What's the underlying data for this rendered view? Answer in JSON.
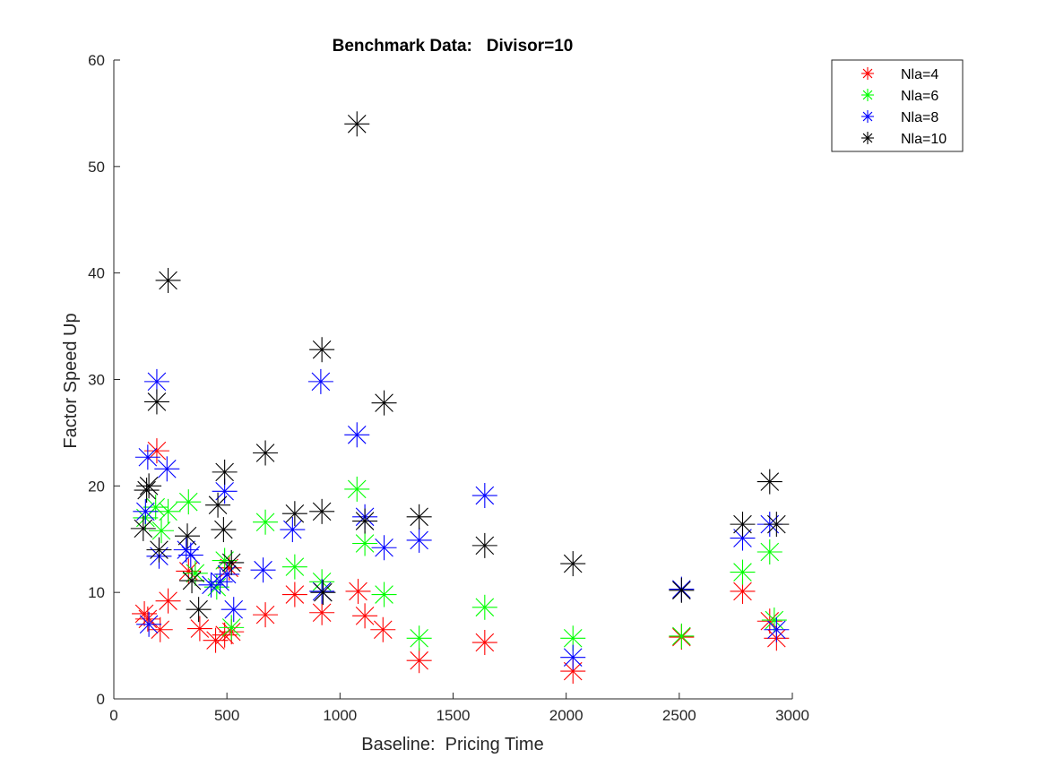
{
  "chart_data": {
    "type": "scatter",
    "title": "Benchmark Data:   Divisor=10",
    "xlabel": "Baseline:  Pricing Time",
    "ylabel": "Factor Speed Up",
    "xlim": [
      0,
      3000
    ],
    "ylim": [
      0,
      60
    ],
    "xticks": [
      0,
      500,
      1000,
      1500,
      2000,
      2500,
      3000
    ],
    "yticks": [
      0,
      10,
      20,
      30,
      40,
      50,
      60
    ],
    "marker": "asterisk",
    "grid": false,
    "legend_position": "top-right",
    "series": [
      {
        "name": "Nla=4",
        "color": "#ff0000",
        "points": [
          [
            135,
            8.0
          ],
          [
            150,
            7.5
          ],
          [
            190,
            23.3
          ],
          [
            205,
            6.5
          ],
          [
            240,
            9.2
          ],
          [
            330,
            12.0
          ],
          [
            380,
            6.6
          ],
          [
            450,
            5.5
          ],
          [
            490,
            6.0
          ],
          [
            510,
            12.3
          ],
          [
            520,
            6.3
          ],
          [
            670,
            7.9
          ],
          [
            800,
            9.8
          ],
          [
            920,
            8.1
          ],
          [
            1080,
            10.1
          ],
          [
            1110,
            7.8
          ],
          [
            1190,
            6.5
          ],
          [
            1350,
            3.6
          ],
          [
            1640,
            5.3
          ],
          [
            2030,
            2.6
          ],
          [
            2510,
            5.8
          ],
          [
            2780,
            10.1
          ],
          [
            2900,
            7.3
          ],
          [
            2930,
            5.7
          ]
        ]
      },
      {
        "name": "Nla=6",
        "color": "#00ff00",
        "points": [
          [
            140,
            17.0
          ],
          [
            185,
            18.0
          ],
          [
            210,
            15.8
          ],
          [
            240,
            17.6
          ],
          [
            330,
            18.5
          ],
          [
            360,
            11.8
          ],
          [
            455,
            10.5
          ],
          [
            490,
            13.0
          ],
          [
            520,
            6.7
          ],
          [
            670,
            16.6
          ],
          [
            800,
            12.4
          ],
          [
            920,
            11.0
          ],
          [
            1075,
            19.7
          ],
          [
            1110,
            14.6
          ],
          [
            1195,
            9.8
          ],
          [
            1350,
            5.7
          ],
          [
            1640,
            8.6
          ],
          [
            2030,
            5.7
          ],
          [
            2510,
            5.9
          ],
          [
            2780,
            11.9
          ],
          [
            2900,
            13.8
          ],
          [
            2920,
            7.4
          ]
        ]
      },
      {
        "name": "Nla=8",
        "color": "#0000ff",
        "points": [
          [
            140,
            17.6
          ],
          [
            150,
            22.7
          ],
          [
            155,
            7.0
          ],
          [
            190,
            29.8
          ],
          [
            200,
            13.4
          ],
          [
            235,
            21.6
          ],
          [
            320,
            14.0
          ],
          [
            340,
            13.5
          ],
          [
            430,
            10.7
          ],
          [
            470,
            11.0
          ],
          [
            490,
            19.5
          ],
          [
            500,
            11.7
          ],
          [
            530,
            8.4
          ],
          [
            660,
            12.1
          ],
          [
            790,
            15.9
          ],
          [
            915,
            29.8
          ],
          [
            920,
            10.1
          ],
          [
            1075,
            24.8
          ],
          [
            1110,
            17.1
          ],
          [
            1195,
            14.2
          ],
          [
            1350,
            14.9
          ],
          [
            1640,
            19.1
          ],
          [
            2030,
            3.9
          ],
          [
            2510,
            10.3
          ],
          [
            2780,
            15.1
          ],
          [
            2900,
            16.4
          ],
          [
            2930,
            6.5
          ]
        ]
      },
      {
        "name": "Nla=10",
        "color": "#000000",
        "points": [
          [
            130,
            16.0
          ],
          [
            145,
            19.6
          ],
          [
            155,
            20.0
          ],
          [
            190,
            27.9
          ],
          [
            200,
            14.0
          ],
          [
            240,
            39.3
          ],
          [
            325,
            15.3
          ],
          [
            345,
            11.1
          ],
          [
            375,
            8.4
          ],
          [
            460,
            18.2
          ],
          [
            485,
            15.9
          ],
          [
            490,
            21.3
          ],
          [
            520,
            12.8
          ],
          [
            670,
            23.1
          ],
          [
            800,
            17.4
          ],
          [
            920,
            32.8
          ],
          [
            920,
            17.6
          ],
          [
            925,
            10.0
          ],
          [
            1075,
            54.0
          ],
          [
            1110,
            16.7
          ],
          [
            1195,
            27.8
          ],
          [
            1350,
            17.1
          ],
          [
            1640,
            14.4
          ],
          [
            2030,
            12.7
          ],
          [
            2510,
            10.2
          ],
          [
            2780,
            16.4
          ],
          [
            2900,
            20.4
          ],
          [
            2930,
            16.4
          ]
        ]
      }
    ]
  }
}
